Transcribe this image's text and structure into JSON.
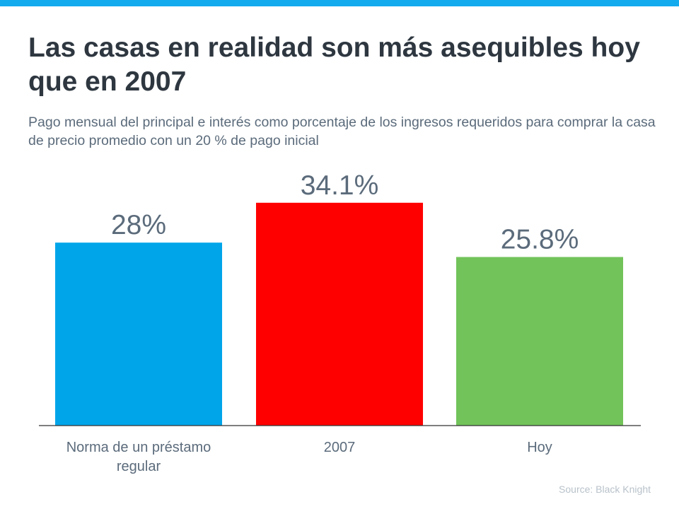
{
  "header": {
    "title": "Las casas en realidad son más asequibles hoy que en 2007",
    "subtitle": "Pago mensual del principal e interés como porcentaje de los ingresos requeridos para comprar la casa de precio promedio con un 20 % de pago inicial"
  },
  "colors": {
    "top_bar": "#13aaee",
    "axis": "#333333",
    "labels": "#5b6b7b"
  },
  "chart_data": {
    "type": "bar",
    "categories": [
      "Norma de un préstamo regular",
      "2007",
      "Hoy"
    ],
    "values": [
      28,
      34.1,
      25.8
    ],
    "data_labels": [
      "28%",
      "34.1%",
      "25.8%"
    ],
    "colors": [
      "#00a5e9",
      "#ff0000",
      "#72c35a"
    ],
    "unit": "%",
    "grid": false,
    "legend": "none",
    "ylim": [
      0,
      37
    ]
  },
  "footer": {
    "source": "Source: Black Knight"
  }
}
